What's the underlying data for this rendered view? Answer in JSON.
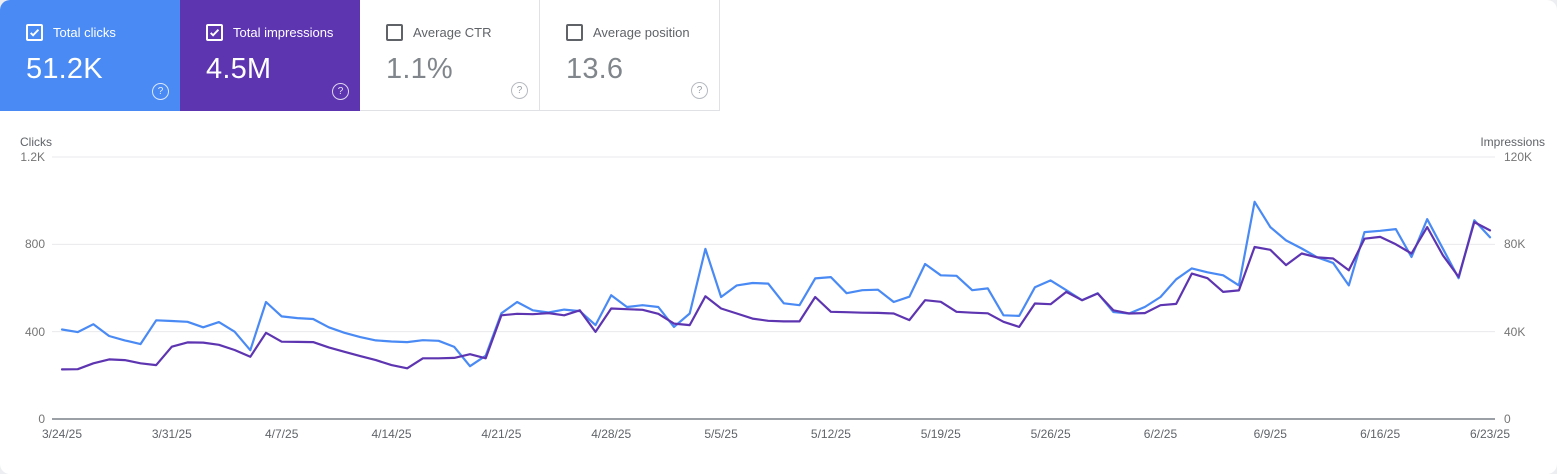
{
  "colors": {
    "clicks_blue": "#4a8af4",
    "impressions_purple": "#5e35b1",
    "gridline": "#e9eaed",
    "baseline": "#9aa0a6"
  },
  "cards": [
    {
      "label": "Total clicks",
      "value": "51.2K",
      "checked": true
    },
    {
      "label": "Total impressions",
      "value": "4.5M",
      "checked": true
    },
    {
      "label": "Average CTR",
      "value": "1.1%",
      "checked": false
    },
    {
      "label": "Average position",
      "value": "13.6",
      "checked": false
    }
  ],
  "chart_data": {
    "type": "line",
    "frequency": "daily",
    "x_start": "3/24/25",
    "x_end": "6/23/25",
    "x_ticks": [
      "3/24/25",
      "3/31/25",
      "4/7/25",
      "4/14/25",
      "4/21/25",
      "4/28/25",
      "5/5/25",
      "5/12/25",
      "5/19/25",
      "5/26/25",
      "6/2/25",
      "6/9/25",
      "6/16/25",
      "6/23/25"
    ],
    "left_axis": {
      "label": "Clicks",
      "ticks": [
        "1.2K",
        "800",
        "400",
        "0"
      ],
      "max": 1200
    },
    "right_axis": {
      "label": "Impressions",
      "ticks": [
        "120K",
        "80K",
        "40K",
        "0"
      ],
      "max": 120000
    },
    "grid": "horizontal-only",
    "legend_position": "none",
    "series": [
      {
        "name": "Total clicks",
        "axis": "left",
        "color": "#4a8af4",
        "values": [
          410,
          398,
          434,
          380,
          360,
          343,
          452,
          449,
          445,
          420,
          444,
          400,
          315,
          536,
          470,
          462,
          458,
          420,
          395,
          375,
          360,
          355,
          352,
          361,
          358,
          330,
          242,
          290,
          484,
          536,
          498,
          488,
          501,
          494,
          430,
          567,
          513,
          521,
          513,
          422,
          483,
          779,
          559,
          612,
          623,
          620,
          530,
          521,
          644,
          650,
          576,
          590,
          592,
          536,
          560,
          710,
          658,
          656,
          590,
          598,
          475,
          472,
          603,
          635,
          590,
          544,
          576,
          490,
          483,
          513,
          559,
          640,
          690,
          672,
          658,
          612,
          995,
          879,
          818,
          781,
          740,
          715,
          612,
          856,
          862,
          870,
          742,
          915,
          780,
          645,
          910,
          832
        ]
      },
      {
        "name": "Total impressions",
        "axis": "right",
        "color": "#5e35b1",
        "values": [
          22700,
          22800,
          25500,
          27300,
          27000,
          25500,
          24700,
          33100,
          35100,
          35000,
          34000,
          31600,
          28500,
          39500,
          35400,
          35300,
          35200,
          32800,
          30800,
          28800,
          27000,
          24700,
          23200,
          27800,
          27800,
          28000,
          29700,
          27800,
          47500,
          48200,
          48000,
          48500,
          47500,
          49800,
          39900,
          50600,
          50300,
          50000,
          48200,
          43700,
          43000,
          56200,
          50600,
          48300,
          46000,
          45000,
          44700,
          44700,
          55900,
          49100,
          48900,
          48700,
          48600,
          48300,
          45300,
          54400,
          53700,
          49100,
          48700,
          48400,
          44500,
          42200,
          52900,
          52600,
          58200,
          54400,
          57500,
          49800,
          48300,
          48500,
          52100,
          52700,
          66600,
          64500,
          58200,
          58900,
          78800,
          77500,
          70500,
          75800,
          74000,
          73500,
          68100,
          82600,
          83400,
          80000,
          75800,
          87900,
          75000,
          65100,
          90200,
          86400
        ]
      }
    ]
  }
}
